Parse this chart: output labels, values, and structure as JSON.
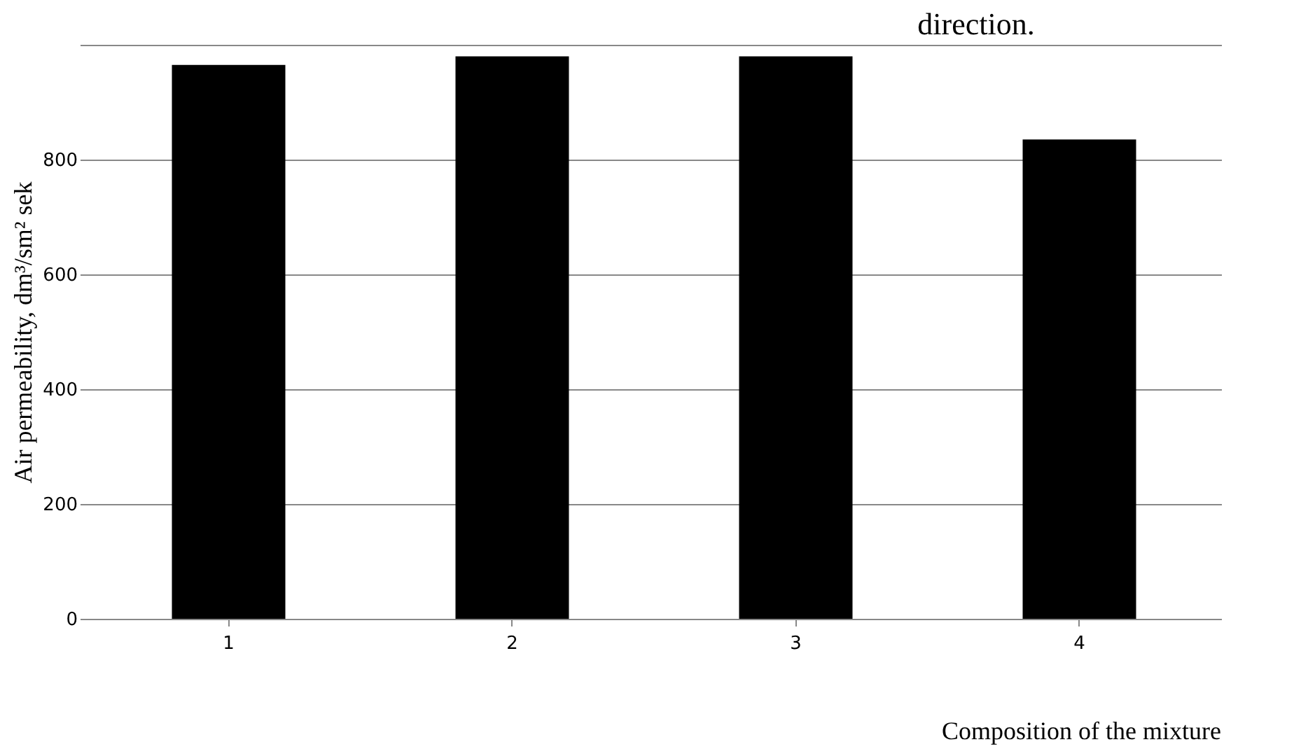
{
  "chart_data": {
    "type": "bar",
    "title": "direction.",
    "xlabel": "Composition of the mixture",
    "ylabel": "Air permeability, dm³/sm² sek",
    "categories": [
      "1",
      "2",
      "3",
      "4"
    ],
    "values": [
      965,
      980,
      980,
      835
    ],
    "color": "#000000",
    "ylim": [
      0,
      1000
    ],
    "yticks": [
      0,
      200,
      400,
      600,
      800,
      {
        "value": 1000,
        "label": null
      }
    ],
    "grid": "y"
  }
}
